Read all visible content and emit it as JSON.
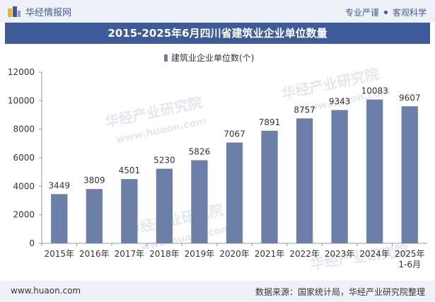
{
  "header": {
    "brand_name": "华经情报网",
    "tag_1": "专业严谨",
    "tag_2": "客观科学",
    "title": "2015-2025年6月四川省建筑业企业单位数量"
  },
  "watermark": {
    "text_cn": "华经产业研究院",
    "text_url": "www.huaon.com"
  },
  "footer": {
    "website": "www.huaon.com",
    "source": "数据来源：国家统计局，华经产业研究院整理"
  },
  "colors": {
    "brand": "#3d5a99",
    "bar": "#6b7fa8",
    "band": "#eef2f8"
  },
  "chart_data": {
    "type": "bar",
    "categories": [
      "2015年",
      "2016年",
      "2017年",
      "2018年",
      "2019年",
      "2020年",
      "2021年",
      "2022年",
      "2023年",
      "2024年",
      "2025年\n1-6月"
    ],
    "series": [
      {
        "name": "建筑业企业单位数(个)",
        "values": [
          3449,
          3809,
          4501,
          5230,
          5826,
          7067,
          7891,
          8757,
          9343,
          10083,
          9607
        ]
      }
    ],
    "yticks": [
      0,
      2000,
      4000,
      6000,
      8000,
      10000,
      12000
    ],
    "ylim": [
      0,
      12000
    ],
    "legend_position": "top-center",
    "grid": false,
    "data_labels": true
  }
}
